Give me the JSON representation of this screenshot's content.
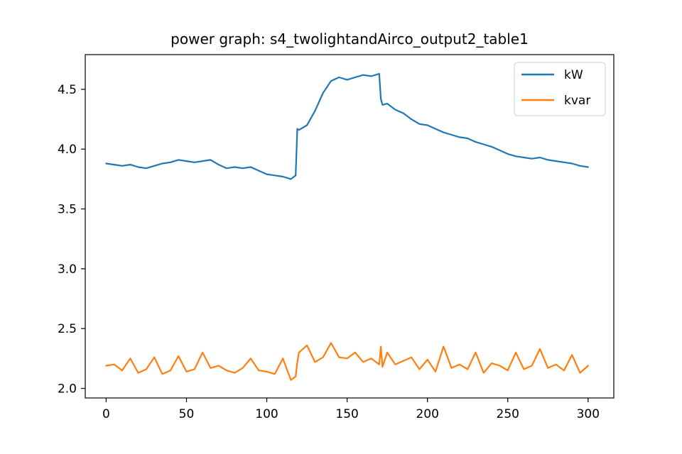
{
  "chart_data": {
    "type": "line",
    "title": "power graph: s4_twolightandAirco_output2_table1",
    "xlabel": "",
    "ylabel": "",
    "xlim": [
      -13,
      316
    ],
    "ylim": [
      1.92,
      4.79
    ],
    "x_ticks": [
      0,
      50,
      100,
      150,
      200,
      250,
      300
    ],
    "y_ticks": [
      2.0,
      2.5,
      3.0,
      3.5,
      4.0,
      4.5
    ],
    "grid": false,
    "legend_position": "top-right",
    "x": [
      0,
      5,
      10,
      15,
      20,
      25,
      30,
      35,
      40,
      45,
      50,
      55,
      60,
      65,
      70,
      75,
      80,
      85,
      90,
      95,
      100,
      105,
      110,
      115,
      118,
      119,
      120,
      125,
      130,
      135,
      140,
      145,
      150,
      155,
      160,
      165,
      170,
      171,
      172,
      175,
      180,
      185,
      190,
      195,
      200,
      205,
      210,
      215,
      220,
      225,
      230,
      235,
      240,
      245,
      250,
      255,
      260,
      265,
      270,
      275,
      280,
      285,
      290,
      295,
      300
    ],
    "series": [
      {
        "name": "kW",
        "color": "#1f77b4",
        "values": [
          3.88,
          3.87,
          3.86,
          3.87,
          3.85,
          3.84,
          3.86,
          3.88,
          3.89,
          3.91,
          3.9,
          3.89,
          3.9,
          3.91,
          3.87,
          3.84,
          3.85,
          3.84,
          3.85,
          3.82,
          3.79,
          3.78,
          3.77,
          3.75,
          3.78,
          4.17,
          4.16,
          4.2,
          4.32,
          4.47,
          4.57,
          4.6,
          4.58,
          4.6,
          4.62,
          4.61,
          4.63,
          4.42,
          4.37,
          4.38,
          4.33,
          4.3,
          4.25,
          4.21,
          4.2,
          4.17,
          4.14,
          4.12,
          4.1,
          4.09,
          4.06,
          4.04,
          4.02,
          3.99,
          3.96,
          3.94,
          3.93,
          3.92,
          3.93,
          3.91,
          3.9,
          3.89,
          3.88,
          3.86,
          3.85
        ]
      },
      {
        "name": "kvar",
        "color": "#ff7f0e",
        "values": [
          2.19,
          2.2,
          2.15,
          2.25,
          2.13,
          2.16,
          2.26,
          2.12,
          2.15,
          2.27,
          2.14,
          2.16,
          2.3,
          2.17,
          2.19,
          2.15,
          2.13,
          2.17,
          2.25,
          2.15,
          2.14,
          2.12,
          2.25,
          2.07,
          2.1,
          2.22,
          2.3,
          2.36,
          2.22,
          2.26,
          2.38,
          2.26,
          2.25,
          2.3,
          2.22,
          2.25,
          2.2,
          2.35,
          2.18,
          2.3,
          2.2,
          2.23,
          2.26,
          2.16,
          2.24,
          2.14,
          2.35,
          2.17,
          2.2,
          2.16,
          2.3,
          2.13,
          2.21,
          2.19,
          2.15,
          2.3,
          2.16,
          2.19,
          2.33,
          2.17,
          2.2,
          2.15,
          2.28,
          2.13,
          2.19
        ]
      }
    ]
  }
}
